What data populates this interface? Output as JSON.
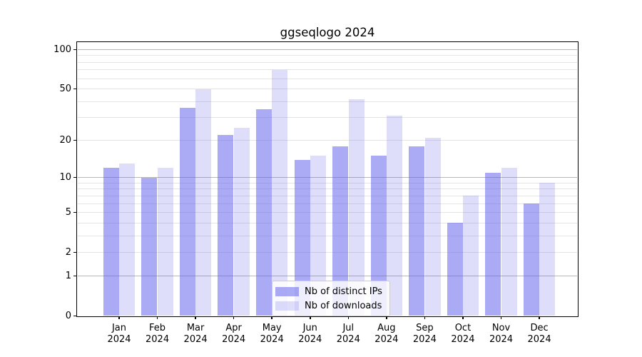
{
  "title": "ggseqlogo 2024",
  "chart_data": {
    "type": "bar",
    "title": "ggseqlogo 2024",
    "categories": [
      "Jan",
      "Feb",
      "Mar",
      "Apr",
      "May",
      "Jun",
      "Jul",
      "Aug",
      "Sep",
      "Oct",
      "Nov",
      "Dec"
    ],
    "tick_year": "2024",
    "series": [
      {
        "name": "Nb of distinct IPs",
        "color": "rgba(88,88,235,0.5)",
        "values": [
          12,
          10,
          36,
          22,
          35,
          14,
          18,
          15,
          18,
          4,
          11,
          6
        ]
      },
      {
        "name": "Nb of downloads",
        "color": "rgba(88,88,235,0.2)",
        "values": [
          13,
          12,
          50,
          25,
          70,
          15,
          42,
          31,
          21,
          7,
          12,
          9
        ]
      }
    ],
    "yscale": "log1p",
    "ylim": [
      0,
      100
    ],
    "y_ticks": [
      0,
      1,
      2,
      5,
      10,
      20,
      50,
      100
    ],
    "grid": {
      "major": [
        1,
        10,
        100
      ],
      "minor": [
        2,
        3,
        4,
        5,
        6,
        7,
        8,
        9,
        20,
        30,
        40,
        50,
        60,
        70,
        80,
        90
      ]
    },
    "legend_position": "lower center",
    "grid_major_color": "#b8b8b8",
    "grid_minor_color": "#e4e4e4"
  }
}
